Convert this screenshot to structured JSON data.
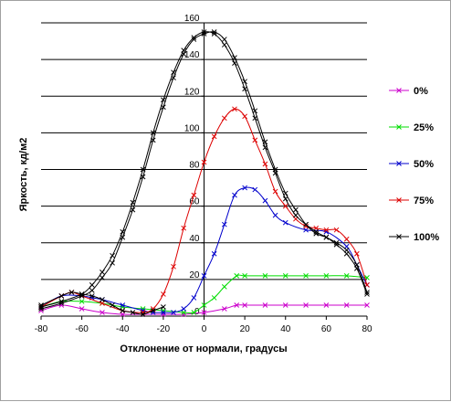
{
  "chart_data": {
    "type": "line",
    "title": "",
    "xlabel": "Отклонение от нормали, градусы",
    "ylabel": "Яркость, кд/м2",
    "xlim": [
      -80,
      80
    ],
    "ylim": [
      0,
      160
    ],
    "xticks": [
      -80,
      -60,
      -40,
      -20,
      0,
      20,
      40,
      60,
      80
    ],
    "yticks": [
      0,
      20,
      40,
      60,
      80,
      100,
      120,
      140,
      160
    ],
    "grid": "horizontal",
    "legend_position": "right",
    "series": [
      {
        "name": "0%",
        "color": "#cc00cc",
        "curves": [
          [
            [
              -80,
              3
            ],
            [
              -70,
              6
            ],
            [
              -60,
              4
            ],
            [
              -50,
              2
            ],
            [
              -40,
              1
            ],
            [
              -30,
              1
            ],
            [
              -20,
              1
            ],
            [
              -10,
              1
            ],
            [
              0,
              2
            ],
            [
              10,
              4
            ],
            [
              16,
              6
            ],
            [
              20,
              6
            ],
            [
              30,
              6
            ],
            [
              40,
              6
            ],
            [
              50,
              6
            ],
            [
              60,
              6
            ],
            [
              70,
              6
            ],
            [
              80,
              6
            ]
          ]
        ]
      },
      {
        "name": "25%",
        "color": "#00dd00",
        "curves": [
          [
            [
              -80,
              5
            ],
            [
              -70,
              8
            ],
            [
              -60,
              8
            ],
            [
              -50,
              7
            ],
            [
              -40,
              5
            ],
            [
              -30,
              4
            ],
            [
              -20,
              3
            ],
            [
              -10,
              2
            ],
            [
              -5,
              2
            ],
            [
              0,
              6
            ],
            [
              5,
              10
            ],
            [
              10,
              16
            ],
            [
              16,
              22
            ],
            [
              20,
              22
            ],
            [
              30,
              22
            ],
            [
              40,
              22
            ],
            [
              50,
              22
            ],
            [
              60,
              22
            ],
            [
              70,
              22
            ],
            [
              80,
              21
            ]
          ]
        ]
      },
      {
        "name": "50%",
        "color": "#0000cc",
        "curves": [
          [
            [
              -80,
              5
            ],
            [
              -70,
              11
            ],
            [
              -60,
              11
            ],
            [
              -55,
              10
            ],
            [
              -50,
              9
            ],
            [
              -40,
              6
            ],
            [
              -30,
              3
            ],
            [
              -25,
              2
            ],
            [
              -20,
              2
            ],
            [
              -15,
              2
            ],
            [
              -10,
              4
            ],
            [
              -5,
              10
            ],
            [
              0,
              22
            ],
            [
              5,
              34
            ],
            [
              10,
              50
            ],
            [
              15,
              66
            ],
            [
              20,
              70
            ],
            [
              25,
              69
            ],
            [
              30,
              63
            ],
            [
              35,
              55
            ],
            [
              40,
              51
            ],
            [
              50,
              47
            ],
            [
              60,
              46
            ],
            [
              70,
              38
            ],
            [
              75,
              28
            ],
            [
              80,
              17
            ]
          ]
        ]
      },
      {
        "name": "75%",
        "color": "#dd0000",
        "curves": [
          [
            [
              -80,
              5
            ],
            [
              -70,
              11
            ],
            [
              -65,
              13
            ],
            [
              -60,
              11
            ],
            [
              -50,
              7
            ],
            [
              -40,
              3
            ],
            [
              -30,
              2
            ],
            [
              -25,
              4
            ],
            [
              -20,
              12
            ],
            [
              -15,
              27
            ],
            [
              -10,
              48
            ],
            [
              -5,
              66
            ],
            [
              0,
              84
            ],
            [
              5,
              98
            ],
            [
              10,
              108
            ],
            [
              15,
              113
            ],
            [
              20,
              109
            ],
            [
              25,
              96
            ],
            [
              30,
              83
            ],
            [
              35,
              68
            ],
            [
              40,
              60
            ],
            [
              45,
              53
            ],
            [
              50,
              49
            ],
            [
              55,
              48
            ],
            [
              60,
              47
            ],
            [
              65,
              47
            ],
            [
              70,
              42
            ],
            [
              75,
              34
            ],
            [
              80,
              17
            ]
          ]
        ]
      },
      {
        "name": "100%",
        "color": "#000000",
        "curves": [
          [
            [
              -80,
              6
            ],
            [
              -70,
              11
            ],
            [
              -65,
              13
            ],
            [
              -60,
              12
            ],
            [
              -55,
              11
            ],
            [
              -50,
              9
            ],
            [
              -45,
              6
            ],
            [
              -40,
              3
            ],
            [
              -35,
              2
            ],
            [
              -30,
              1
            ],
            [
              -25,
              3
            ],
            [
              -20,
              5
            ]
          ],
          [
            [
              -80,
              5
            ],
            [
              -70,
              8
            ],
            [
              -60,
              12
            ],
            [
              -55,
              17
            ],
            [
              -50,
              24
            ],
            [
              -45,
              33
            ],
            [
              -40,
              46
            ],
            [
              -35,
              62
            ],
            [
              -30,
              80
            ],
            [
              -25,
              100
            ],
            [
              -20,
              118
            ],
            [
              -15,
              133
            ],
            [
              -10,
              145
            ],
            [
              -5,
              152
            ],
            [
              0,
              155
            ],
            [
              5,
              154
            ],
            [
              10,
              148
            ],
            [
              15,
              138
            ],
            [
              20,
              124
            ],
            [
              25,
              108
            ],
            [
              30,
              92
            ],
            [
              35,
              78
            ],
            [
              40,
              64
            ],
            [
              45,
              55
            ],
            [
              50,
              50
            ],
            [
              55,
              46
            ],
            [
              60,
              43
            ],
            [
              65,
              40
            ],
            [
              70,
              36
            ],
            [
              75,
              28
            ],
            [
              80,
              13
            ]
          ],
          [
            [
              -80,
              4
            ],
            [
              -70,
              7
            ],
            [
              -60,
              11
            ],
            [
              -55,
              14
            ],
            [
              -50,
              21
            ],
            [
              -45,
              29
            ],
            [
              -40,
              43
            ],
            [
              -35,
              58
            ],
            [
              -30,
              76
            ],
            [
              -25,
              96
            ],
            [
              -20,
              114
            ],
            [
              -15,
              130
            ],
            [
              -10,
              143
            ],
            [
              -5,
              151
            ],
            [
              0,
              154
            ],
            [
              5,
              155
            ],
            [
              10,
              151
            ],
            [
              15,
              141
            ],
            [
              20,
              128
            ],
            [
              25,
              112
            ],
            [
              30,
              95
            ],
            [
              35,
              80
            ],
            [
              40,
              67
            ],
            [
              45,
              58
            ],
            [
              50,
              50
            ],
            [
              55,
              45
            ],
            [
              60,
              43
            ],
            [
              65,
              39
            ],
            [
              70,
              34
            ],
            [
              75,
              26
            ],
            [
              80,
              12
            ]
          ]
        ]
      }
    ]
  }
}
